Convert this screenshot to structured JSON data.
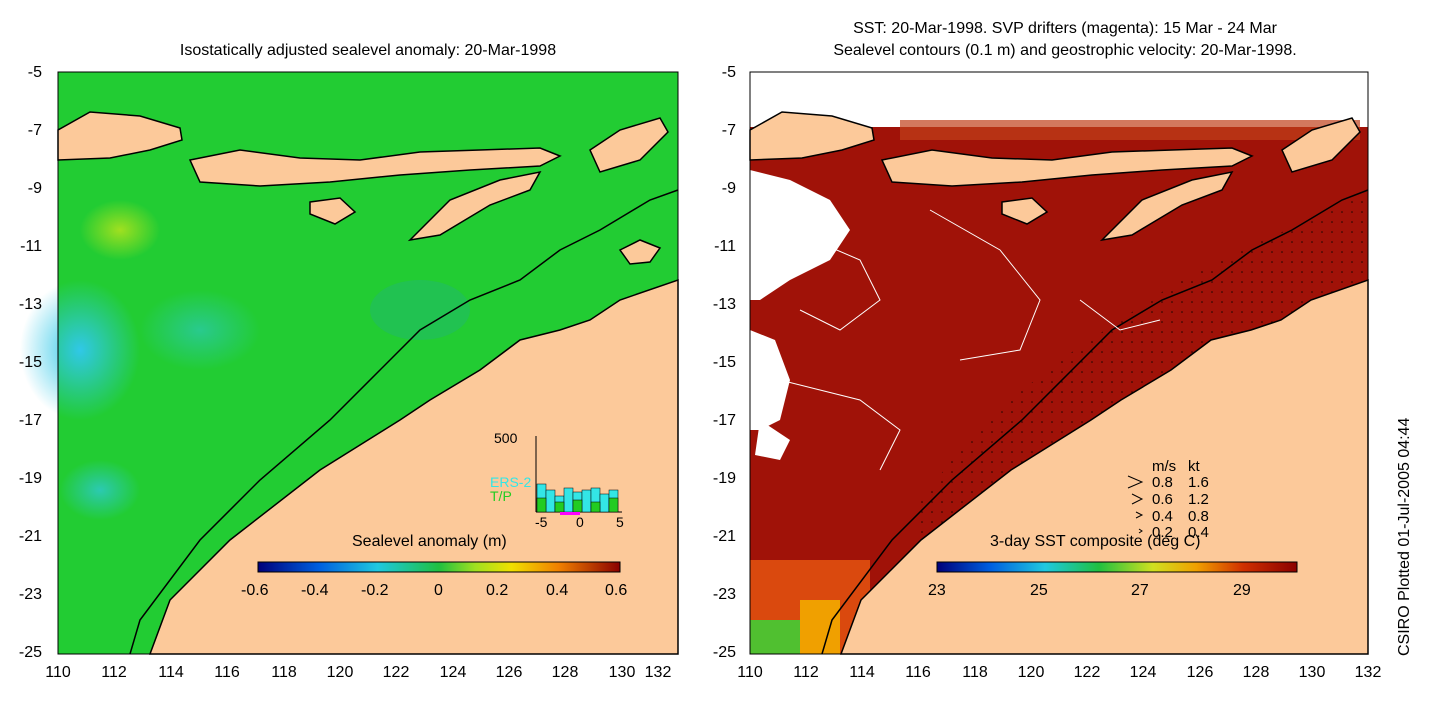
{
  "left_panel": {
    "title": "Isostatically adjusted sealevel anomaly: 20-Mar-1998",
    "colorbar_label": "Sealevel anomaly (m)",
    "colorbar_ticks": [
      "-0.6",
      "-0.4",
      "-0.2",
      "0",
      "0.2",
      "0.4",
      "0.6"
    ],
    "histogram": {
      "ymax_label": "500",
      "series": [
        {
          "name": "ERS-2",
          "color": "#33e6e6"
        },
        {
          "name": "T/P",
          "color": "#22cc22"
        }
      ],
      "x_ticks": [
        "-5",
        "0",
        "5"
      ]
    }
  },
  "right_panel": {
    "title_line1": "SST: 20-Mar-1998. SVP drifters (magenta): 15 Mar - 24 Mar",
    "title_line2": "Sealevel contours (0.1 m) and geostrophic velocity: 20-Mar-1998.",
    "colorbar_label": "3-day SST composite (deg C)",
    "colorbar_ticks": [
      "23",
      "25",
      "27",
      "29"
    ],
    "velocity_legend": {
      "header_ms": "m/s",
      "header_kt": "kt",
      "rows": [
        {
          "ms": "0.8",
          "kt": "1.6"
        },
        {
          "ms": "0.6",
          "kt": "1.2"
        },
        {
          "ms": "0.4",
          "kt": "0.8"
        },
        {
          "ms": "0.2",
          "kt": "0.4"
        }
      ]
    }
  },
  "axes": {
    "y_ticks": [
      "-5",
      "-7",
      "-9",
      "-11",
      "-13",
      "-15",
      "-17",
      "-19",
      "-21",
      "-23",
      "-25"
    ],
    "x_ticks": [
      "110",
      "112",
      "114",
      "116",
      "118",
      "120",
      "122",
      "124",
      "126",
      "128",
      "130",
      "132"
    ]
  },
  "colors": {
    "land": "#fcc99a",
    "sea_green": "#22cc33",
    "sst_red": "#a01208"
  },
  "footer_note": "CSIRO Plotted 01-Jul-2005 04:44"
}
